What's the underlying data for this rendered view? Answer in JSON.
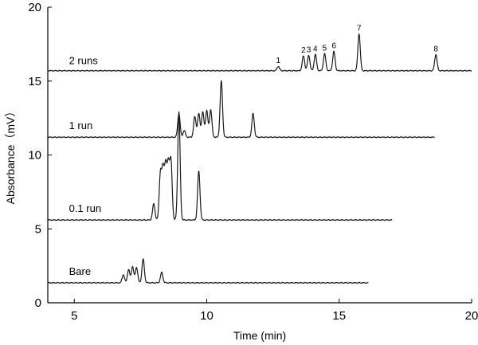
{
  "chart_data": {
    "type": "line",
    "title": "",
    "xlabel": "Time (min)",
    "ylabel": "Absorbance（mV）",
    "xlim": [
      4,
      20
    ],
    "ylim": [
      0,
      20
    ],
    "x_ticks": [
      5,
      10,
      15,
      20
    ],
    "y_ticks": [
      0,
      5,
      10,
      15,
      20
    ],
    "grid": false,
    "series": [
      {
        "name": "2 runs",
        "x_range": [
          4,
          20
        ],
        "baseline": 15.7,
        "peaks": [
          {
            "x": 12.7,
            "height": 0.3,
            "label": "1"
          },
          {
            "x": 13.65,
            "height": 1.0,
            "label": "2"
          },
          {
            "x": 13.85,
            "height": 1.05,
            "label": "3"
          },
          {
            "x": 14.1,
            "height": 1.1,
            "label": "4"
          },
          {
            "x": 14.45,
            "height": 1.15,
            "label": "5"
          },
          {
            "x": 14.8,
            "height": 1.3,
            "label": "6"
          },
          {
            "x": 15.75,
            "height": 2.5,
            "label": "7"
          },
          {
            "x": 18.65,
            "height": 1.1,
            "label": "8"
          }
        ]
      },
      {
        "name": "1 run",
        "x_range": [
          4,
          18.6
        ],
        "baseline": 11.2,
        "peaks": [
          {
            "x": 8.95,
            "height": 1.6
          },
          {
            "x": 9.15,
            "height": 0.45
          },
          {
            "x": 9.55,
            "height": 1.4
          },
          {
            "x": 9.7,
            "height": 1.6
          },
          {
            "x": 9.85,
            "height": 1.7
          },
          {
            "x": 10.0,
            "height": 1.8
          },
          {
            "x": 10.15,
            "height": 1.85
          },
          {
            "x": 10.55,
            "height": 3.8
          },
          {
            "x": 11.75,
            "height": 1.6
          }
        ]
      },
      {
        "name": "0.1 run",
        "x_range": [
          4,
          17.0
        ],
        "baseline": 5.6,
        "peaks": [
          {
            "x": 8.0,
            "height": 1.1
          },
          {
            "x": 8.25,
            "height": 3.1
          },
          {
            "x": 8.35,
            "height": 3.3
          },
          {
            "x": 8.45,
            "height": 3.5
          },
          {
            "x": 8.55,
            "height": 3.6
          },
          {
            "x": 8.65,
            "height": 3.9
          },
          {
            "x": 8.95,
            "height": 7.3
          },
          {
            "x": 9.7,
            "height": 3.3
          }
        ]
      },
      {
        "name": "Bare",
        "x_range": [
          4,
          16.1
        ],
        "baseline": 1.35,
        "peaks": [
          {
            "x": 6.85,
            "height": 0.55
          },
          {
            "x": 7.05,
            "height": 0.9
          },
          {
            "x": 7.2,
            "height": 1.1
          },
          {
            "x": 7.35,
            "height": 1.05
          },
          {
            "x": 7.6,
            "height": 1.6
          },
          {
            "x": 8.3,
            "height": 0.7
          }
        ]
      }
    ]
  }
}
